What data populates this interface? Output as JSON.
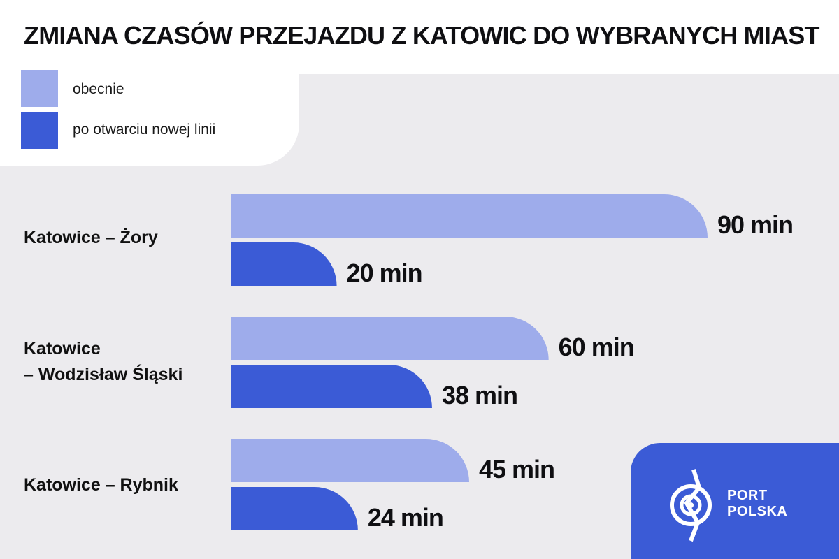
{
  "title": "ZMIANA CZASÓW PRZEJAZDU Z KATOWIC DO WYBRANYCH MIAST",
  "legend": [
    {
      "label": "obecnie",
      "color": "#9eaceb"
    },
    {
      "label": "po otwarciu nowej linii",
      "color": "#3b5bd6"
    }
  ],
  "row_labels": [
    [
      "Katowice – Żory"
    ],
    [
      "Katowice",
      "– Wodzisław Śląski"
    ],
    [
      "Katowice – Rybnik"
    ]
  ],
  "chart_data": {
    "type": "bar",
    "orientation": "horizontal",
    "categories": [
      "Katowice – Żory",
      "Katowice – Wodzisław Śląski",
      "Katowice – Rybnik"
    ],
    "series": [
      {
        "name": "obecnie",
        "values": [
          90,
          60,
          45
        ],
        "color": "#9eaceb"
      },
      {
        "name": "po otwarciu nowej linii",
        "values": [
          20,
          38,
          24
        ],
        "color": "#3b5bd6"
      }
    ],
    "value_labels": [
      [
        "90 min",
        "20 min"
      ],
      [
        "60 min",
        "38 min"
      ],
      [
        "45 min",
        "24 min"
      ]
    ],
    "unit": "min",
    "xlim": [
      0,
      90
    ],
    "grid": false,
    "legend_position": "top-left"
  },
  "logo": {
    "line1": "PORT",
    "line2": "POLSKA",
    "icon": "port-polska-logo-icon"
  }
}
